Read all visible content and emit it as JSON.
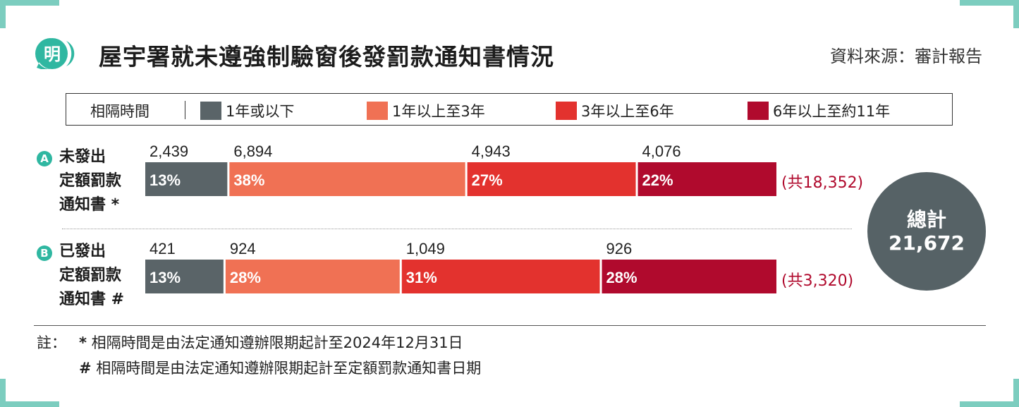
{
  "header": {
    "logo_char": "明",
    "title": "屋宇署就未遵強制驗窗後發罰款通知書情況",
    "source": "資料來源：審計報告"
  },
  "legend": {
    "label": "相隔時間",
    "items": [
      "1年或以下",
      "1年以上至3年",
      "3年以上至6年",
      "6年以上至約11年"
    ]
  },
  "colors": [
    "#5a6468",
    "#f07154",
    "#e3322e",
    "#b00a2d"
  ],
  "chart_data": {
    "type": "bar",
    "orientation": "horizontal-stacked",
    "series_names": [
      "1年或以下",
      "1年以上至3年",
      "3年以上至6年",
      "6年以上至約11年"
    ],
    "rows": [
      {
        "badge": "A",
        "label_lines": [
          "未發出",
          "定額罰款",
          "通知書 *"
        ],
        "values": [
          2439,
          6894,
          4943,
          4076
        ],
        "value_labels": [
          "2,439",
          "6,894",
          "4,943",
          "4,076"
        ],
        "percent_labels": [
          "13%",
          "38%",
          "27%",
          "22%"
        ],
        "total_label": "(共18,352)"
      },
      {
        "badge": "B",
        "label_lines": [
          "已發出",
          "定額罰款",
          "通知書 #"
        ],
        "values": [
          421,
          924,
          1049,
          926
        ],
        "value_labels": [
          "421",
          "924",
          "1,049",
          "926"
        ],
        "percent_labels": [
          "13%",
          "28%",
          "31%",
          "28%"
        ],
        "total_label": "(共3,320)"
      }
    ]
  },
  "grand_total": {
    "label": "總計",
    "value": "21,672"
  },
  "notes": {
    "heading": "註：",
    "line1_mark": "*",
    "line1": "相隔時間是由法定通知遵辦限期起計至2024年12月31日",
    "line2_mark": "#",
    "line2": "相隔時間是由法定通知遵辦限期起計至定額罰款通知書日期"
  }
}
